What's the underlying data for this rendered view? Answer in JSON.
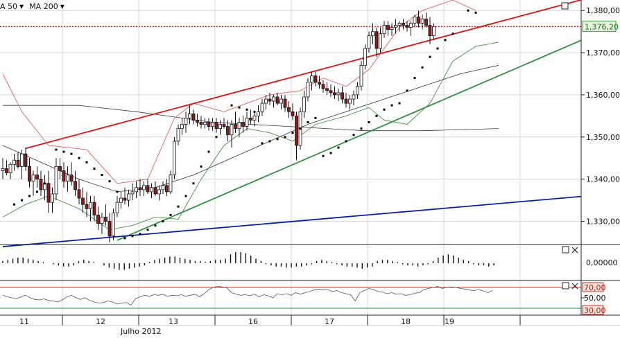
{
  "toolbar": {
    "ma50_label": "A 50",
    "ma200_label": "MA 200",
    "dropdown_glyph": "▼"
  },
  "colors": {
    "resistance": "#e01010",
    "support": "#2f8f40",
    "long_trend": "#0a1ea8",
    "bollinger_upper": "#e06060",
    "bollinger_lower": "#4a8a4a",
    "ma": "#333333",
    "price_marker_bg": "#e8f5e0",
    "price_marker_border": "#3a9a3a",
    "rsi_upper_bg": "#fde3dc",
    "rsi_upper_border": "#d03020",
    "rsi_lower_bg": "#fde3dc"
  },
  "price_panel": {
    "price_marker": "1,376,20",
    "icons": [
      "window-icon"
    ]
  },
  "macd_panel": {
    "axis_label": "0,00000",
    "icons": [
      "window-icon",
      "close-icon"
    ]
  },
  "rsi_panel": {
    "level_upper": "70,00",
    "level_mid": "50,00",
    "level_lower": "30,00",
    "icons": [
      "window-icon",
      "close-icon"
    ]
  },
  "x_axis": {
    "day_labels": [
      "11",
      "12",
      "13",
      "16",
      "17",
      "18",
      "19"
    ],
    "month_label": "Julho 2012"
  },
  "chart_data": {
    "type": "candlestick",
    "y_axis": {
      "ticks": [
        "1,380,00",
        "1,370,00",
        "1,360,00",
        "1,350,00",
        "1,340,00",
        "1,330,00"
      ],
      "ylim": [
        1.3245,
        1.3825
      ]
    },
    "current_price": 1.3762,
    "candles": [
      [
        1.342,
        1.345,
        1.34,
        1.3425
      ],
      [
        1.3425,
        1.3445,
        1.341,
        1.3415
      ],
      [
        1.3415,
        1.344,
        1.34,
        1.3435
      ],
      [
        1.3435,
        1.346,
        1.342,
        1.3445
      ],
      [
        1.3445,
        1.3465,
        1.3425,
        1.343
      ],
      [
        1.343,
        1.347,
        1.34,
        1.346
      ],
      [
        1.346,
        1.3475,
        1.342,
        1.343
      ],
      [
        1.343,
        1.345,
        1.338,
        1.3395
      ],
      [
        1.3395,
        1.342,
        1.336,
        1.341
      ],
      [
        1.341,
        1.343,
        1.338,
        1.34
      ],
      [
        1.34,
        1.342,
        1.336,
        1.3375
      ],
      [
        1.3375,
        1.341,
        1.335,
        1.339
      ],
      [
        1.339,
        1.342,
        1.332,
        1.3345
      ],
      [
        1.3345,
        1.338,
        1.332,
        1.3365
      ],
      [
        1.3365,
        1.345,
        1.335,
        1.343
      ],
      [
        1.343,
        1.345,
        1.34,
        1.342
      ],
      [
        1.342,
        1.344,
        1.338,
        1.3395
      ],
      [
        1.3395,
        1.343,
        1.337,
        1.341
      ],
      [
        1.341,
        1.344,
        1.3385,
        1.3395
      ],
      [
        1.3395,
        1.342,
        1.336,
        1.3375
      ],
      [
        1.3375,
        1.34,
        1.334,
        1.3355
      ],
      [
        1.3355,
        1.338,
        1.332,
        1.334
      ],
      [
        1.334,
        1.337,
        1.331,
        1.333
      ],
      [
        1.333,
        1.336,
        1.33,
        1.3345
      ],
      [
        1.3345,
        1.336,
        1.33,
        1.3315
      ],
      [
        1.3315,
        1.3335,
        1.328,
        1.3295
      ],
      [
        1.3295,
        1.332,
        1.327,
        1.331
      ],
      [
        1.331,
        1.334,
        1.329,
        1.33
      ],
      [
        1.33,
        1.332,
        1.325,
        1.3265
      ],
      [
        1.3265,
        1.333,
        1.3255,
        1.332
      ],
      [
        1.332,
        1.336,
        1.331,
        1.3345
      ],
      [
        1.3345,
        1.337,
        1.333,
        1.3355
      ],
      [
        1.3355,
        1.338,
        1.334,
        1.335
      ],
      [
        1.335,
        1.3375,
        1.3335,
        1.3365
      ],
      [
        1.3365,
        1.339,
        1.335,
        1.337
      ],
      [
        1.337,
        1.3395,
        1.3355,
        1.338
      ],
      [
        1.338,
        1.34,
        1.336,
        1.3375
      ],
      [
        1.3375,
        1.3395,
        1.336,
        1.3385
      ],
      [
        1.3385,
        1.34,
        1.3365,
        1.337
      ],
      [
        1.337,
        1.339,
        1.3355,
        1.338
      ],
      [
        1.338,
        1.3395,
        1.336,
        1.3365
      ],
      [
        1.3365,
        1.3385,
        1.335,
        1.3375
      ],
      [
        1.3375,
        1.3395,
        1.3365,
        1.3385
      ],
      [
        1.3385,
        1.34,
        1.336,
        1.337
      ],
      [
        1.337,
        1.342,
        1.3365,
        1.341
      ],
      [
        1.341,
        1.35,
        1.34,
        1.349
      ],
      [
        1.349,
        1.353,
        1.348,
        1.352
      ],
      [
        1.352,
        1.3545,
        1.3505,
        1.353
      ],
      [
        1.353,
        1.356,
        1.351,
        1.3545
      ],
      [
        1.3545,
        1.3575,
        1.353,
        1.3555
      ],
      [
        1.3555,
        1.3565,
        1.353,
        1.354
      ],
      [
        1.354,
        1.3555,
        1.3525,
        1.3535
      ],
      [
        1.3535,
        1.355,
        1.352,
        1.353
      ],
      [
        1.353,
        1.3545,
        1.352,
        1.3535
      ],
      [
        1.3535,
        1.3545,
        1.3515,
        1.3525
      ],
      [
        1.3525,
        1.3545,
        1.3515,
        1.3535
      ],
      [
        1.3535,
        1.3545,
        1.351,
        1.352
      ],
      [
        1.352,
        1.354,
        1.3505,
        1.353
      ],
      [
        1.353,
        1.3545,
        1.352,
        1.3525
      ],
      [
        1.3525,
        1.354,
        1.349,
        1.3505
      ],
      [
        1.3505,
        1.354,
        1.3475,
        1.353
      ],
      [
        1.353,
        1.356,
        1.351,
        1.352
      ],
      [
        1.352,
        1.3545,
        1.35,
        1.3535
      ],
      [
        1.3535,
        1.355,
        1.351,
        1.3525
      ],
      [
        1.3525,
        1.356,
        1.3515,
        1.3545
      ],
      [
        1.3545,
        1.3565,
        1.353,
        1.354
      ],
      [
        1.354,
        1.356,
        1.3525,
        1.355
      ],
      [
        1.355,
        1.3575,
        1.3535,
        1.356
      ],
      [
        1.356,
        1.359,
        1.355,
        1.358
      ],
      [
        1.358,
        1.36,
        1.3565,
        1.359
      ],
      [
        1.359,
        1.3605,
        1.3575,
        1.3585
      ],
      [
        1.3585,
        1.36,
        1.357,
        1.3595
      ],
      [
        1.3595,
        1.3605,
        1.3575,
        1.358
      ],
      [
        1.358,
        1.36,
        1.3565,
        1.359
      ],
      [
        1.359,
        1.36,
        1.356,
        1.357
      ],
      [
        1.357,
        1.3585,
        1.3545,
        1.356
      ],
      [
        1.356,
        1.358,
        1.354,
        1.355
      ],
      [
        1.355,
        1.356,
        1.3445,
        1.348
      ],
      [
        1.348,
        1.357,
        1.347,
        1.356
      ],
      [
        1.356,
        1.361,
        1.3545,
        1.3595
      ],
      [
        1.3595,
        1.364,
        1.3585,
        1.363
      ],
      [
        1.363,
        1.3655,
        1.361,
        1.3645
      ],
      [
        1.3645,
        1.3655,
        1.362,
        1.363
      ],
      [
        1.363,
        1.3645,
        1.3615,
        1.3625
      ],
      [
        1.3625,
        1.3635,
        1.3605,
        1.3615
      ],
      [
        1.3615,
        1.363,
        1.36,
        1.361
      ],
      [
        1.361,
        1.3625,
        1.3595,
        1.3605
      ],
      [
        1.3605,
        1.362,
        1.359,
        1.36
      ],
      [
        1.36,
        1.3615,
        1.3585,
        1.3605
      ],
      [
        1.3605,
        1.362,
        1.358,
        1.359
      ],
      [
        1.359,
        1.3605,
        1.357,
        1.358
      ],
      [
        1.358,
        1.36,
        1.3565,
        1.359
      ],
      [
        1.359,
        1.361,
        1.3575,
        1.36
      ],
      [
        1.36,
        1.363,
        1.359,
        1.362
      ],
      [
        1.362,
        1.368,
        1.361,
        1.367
      ],
      [
        1.367,
        1.372,
        1.366,
        1.371
      ],
      [
        1.371,
        1.375,
        1.37,
        1.374
      ],
      [
        1.374,
        1.377,
        1.372,
        1.375
      ],
      [
        1.375,
        1.376,
        1.369,
        1.371
      ],
      [
        1.371,
        1.376,
        1.37,
        1.3745
      ],
      [
        1.3745,
        1.3775,
        1.3735,
        1.3765
      ],
      [
        1.3765,
        1.3775,
        1.374,
        1.3755
      ],
      [
        1.3755,
        1.377,
        1.374,
        1.376
      ],
      [
        1.376,
        1.378,
        1.3745,
        1.3765
      ],
      [
        1.3765,
        1.3775,
        1.375,
        1.377
      ],
      [
        1.377,
        1.378,
        1.3755,
        1.3765
      ],
      [
        1.3765,
        1.3775,
        1.375,
        1.376
      ],
      [
        1.376,
        1.3775,
        1.374,
        1.377
      ],
      [
        1.377,
        1.379,
        1.376,
        1.3785
      ],
      [
        1.3785,
        1.38,
        1.376,
        1.377
      ],
      [
        1.377,
        1.379,
        1.3755,
        1.378
      ],
      [
        1.378,
        1.3795,
        1.376,
        1.3765
      ],
      [
        1.3765,
        1.3785,
        1.372,
        1.374
      ],
      [
        1.374,
        1.377,
        1.373,
        1.3762
      ]
    ],
    "trend_lines": [
      {
        "role": "resistance",
        "from": [
          6,
          1.3473
        ],
        "to": [
          130,
          1.3773
        ]
      },
      {
        "role": "support",
        "from": [
          30,
          1.3255
        ],
        "to": [
          130,
          1.3645
        ]
      },
      {
        "role": "long_trend",
        "from": [
          0,
          1.324
        ],
        "to": [
          130,
          1.3342
        ]
      }
    ],
    "indicators": {
      "upper_band": [
        [
          0,
          1.365
        ],
        [
          5,
          1.356
        ],
        [
          12,
          1.348
        ],
        [
          22,
          1.347
        ],
        [
          30,
          1.339
        ],
        [
          38,
          1.34
        ],
        [
          45,
          1.3545
        ],
        [
          50,
          1.358
        ],
        [
          58,
          1.356
        ],
        [
          64,
          1.358
        ],
        [
          70,
          1.36
        ],
        [
          78,
          1.361
        ],
        [
          84,
          1.364
        ],
        [
          90,
          1.362
        ],
        [
          96,
          1.366
        ],
        [
          104,
          1.376
        ],
        [
          110,
          1.38
        ],
        [
          118,
          1.3825
        ],
        [
          124,
          1.38
        ]
      ],
      "lower_band": [
        [
          0,
          1.331
        ],
        [
          6,
          1.334
        ],
        [
          12,
          1.336
        ],
        [
          20,
          1.333
        ],
        [
          28,
          1.328
        ],
        [
          34,
          1.329
        ],
        [
          40,
          1.331
        ],
        [
          46,
          1.3305
        ],
        [
          52,
          1.34
        ],
        [
          58,
          1.348
        ],
        [
          64,
          1.352
        ],
        [
          70,
          1.351
        ],
        [
          76,
          1.349
        ],
        [
          82,
          1.353
        ],
        [
          90,
          1.355
        ],
        [
          96,
          1.357
        ],
        [
          100,
          1.354
        ],
        [
          106,
          1.353
        ],
        [
          112,
          1.358
        ],
        [
          118,
          1.368
        ],
        [
          124,
          1.3715
        ],
        [
          130,
          1.3725
        ]
      ],
      "ma_50": [
        [
          0,
          1.348
        ],
        [
          10,
          1.344
        ],
        [
          20,
          1.34
        ],
        [
          30,
          1.337
        ],
        [
          40,
          1.338
        ],
        [
          50,
          1.341
        ],
        [
          60,
          1.345
        ],
        [
          70,
          1.349
        ],
        [
          80,
          1.353
        ],
        [
          90,
          1.356
        ],
        [
          100,
          1.359
        ],
        [
          110,
          1.362
        ],
        [
          120,
          1.365
        ],
        [
          130,
          1.367
        ]
      ],
      "ma_200": [
        [
          0,
          1.3575
        ],
        [
          20,
          1.3575
        ],
        [
          35,
          1.356
        ],
        [
          55,
          1.3535
        ],
        [
          75,
          1.3525
        ],
        [
          95,
          1.3515
        ],
        [
          110,
          1.3515
        ],
        [
          130,
          1.352
        ]
      ],
      "parabolic_sar": [
        [
          3,
          1.334
        ],
        [
          5,
          1.335
        ],
        [
          7,
          1.336
        ],
        [
          9,
          1.337
        ],
        [
          11,
          1.339
        ],
        [
          14,
          1.347
        ],
        [
          16,
          1.3465
        ],
        [
          18,
          1.346
        ],
        [
          20,
          1.345
        ],
        [
          22,
          1.344
        ],
        [
          24,
          1.3425
        ],
        [
          26,
          1.341
        ],
        [
          28,
          1.3395
        ],
        [
          30,
          1.337
        ],
        [
          32,
          1.326
        ],
        [
          34,
          1.3265
        ],
        [
          36,
          1.327
        ],
        [
          38,
          1.328
        ],
        [
          40,
          1.329
        ],
        [
          42,
          1.33
        ],
        [
          44,
          1.3315
        ],
        [
          46,
          1.3335
        ],
        [
          48,
          1.336
        ],
        [
          50,
          1.339
        ],
        [
          52,
          1.343
        ],
        [
          54,
          1.3465
        ],
        [
          56,
          1.35
        ],
        [
          60,
          1.3575
        ],
        [
          62,
          1.357
        ],
        [
          64,
          1.3565
        ],
        [
          66,
          1.356
        ],
        [
          68,
          1.3485
        ],
        [
          70,
          1.349
        ],
        [
          72,
          1.3495
        ],
        [
          74,
          1.35
        ],
        [
          76,
          1.351
        ],
        [
          78,
          1.352
        ],
        [
          80,
          1.3535
        ],
        [
          82,
          1.3545
        ],
        [
          84,
          1.3455
        ],
        [
          86,
          1.3462
        ],
        [
          88,
          1.3475
        ],
        [
          90,
          1.349
        ],
        [
          92,
          1.3505
        ],
        [
          94,
          1.352
        ],
        [
          96,
          1.3535
        ],
        [
          98,
          1.355
        ],
        [
          100,
          1.3565
        ],
        [
          102,
          1.3575
        ],
        [
          104,
          1.358
        ],
        [
          106,
          1.361
        ],
        [
          108,
          1.364
        ],
        [
          110,
          1.3665
        ],
        [
          112,
          1.369
        ],
        [
          114,
          1.371
        ],
        [
          116,
          1.373
        ],
        [
          118,
          1.3745
        ],
        [
          122,
          1.38
        ],
        [
          124,
          1.3795
        ]
      ]
    },
    "macd_histogram": [
      0.2,
      0.3,
      0.4,
      0.5,
      0.5,
      0.4,
      0.3,
      0.2,
      0.1,
      0,
      -0.1,
      -0.2,
      -0.3,
      -0.3,
      -0.2,
      0.2,
      0.3,
      0.2,
      0.1,
      0,
      -0.2,
      -0.4,
      -0.5,
      -0.6,
      -0.6,
      -0.5,
      -0.4,
      -0.3,
      -0.2,
      0.1,
      0.3,
      0.4,
      0.5,
      0.6,
      0.6,
      0.5,
      0.4,
      0.3,
      0.2,
      0.2,
      0.1,
      0.2,
      0.3,
      0.3,
      0.4,
      0.8,
      1.0,
      1.0,
      0.9,
      0.7,
      0.4,
      0.2,
      -0.1,
      -0.2,
      -0.3,
      -0.3,
      -0.4,
      -0.4,
      -0.3,
      -0.3,
      -0.2,
      -0.1,
      0.2,
      0.3,
      0.2,
      0.1,
      -0.1,
      -0.2,
      -0.3,
      -0.3,
      -0.4,
      -0.5,
      -0.4,
      -0.3,
      0.2,
      0.3,
      0.3,
      0.2,
      0.1,
      -0.1,
      -0.2,
      -0.2,
      -0.3,
      -0.2,
      -0.1,
      0.2,
      0.5,
      0.7,
      0.8,
      0.7,
      0.5,
      0.3,
      0.2,
      -0.1,
      -0.2,
      -0.2,
      -0.3,
      -0.2
    ],
    "rsi": [
      55,
      52,
      50,
      48,
      52,
      55,
      50,
      47,
      46,
      48,
      45,
      44,
      42,
      46,
      52,
      55,
      50,
      47,
      50,
      45,
      42,
      40,
      41,
      44,
      42,
      38,
      40,
      41,
      36,
      48,
      52,
      55,
      53,
      56,
      55,
      57,
      53,
      55,
      54,
      56,
      53,
      55,
      57,
      52,
      58,
      66,
      70,
      72,
      71,
      69,
      60,
      57,
      55,
      56,
      54,
      57,
      52,
      56,
      54,
      50,
      58,
      56,
      58,
      55,
      60,
      57,
      60,
      62,
      65,
      67,
      65,
      66,
      62,
      64,
      60,
      58,
      56,
      44,
      60,
      64,
      68,
      66,
      62,
      61,
      58,
      60,
      57,
      58,
      55,
      56,
      59,
      60,
      66,
      68,
      70,
      72,
      68,
      70,
      71,
      70,
      68,
      67,
      65,
      64,
      66,
      63,
      60,
      64
    ]
  }
}
